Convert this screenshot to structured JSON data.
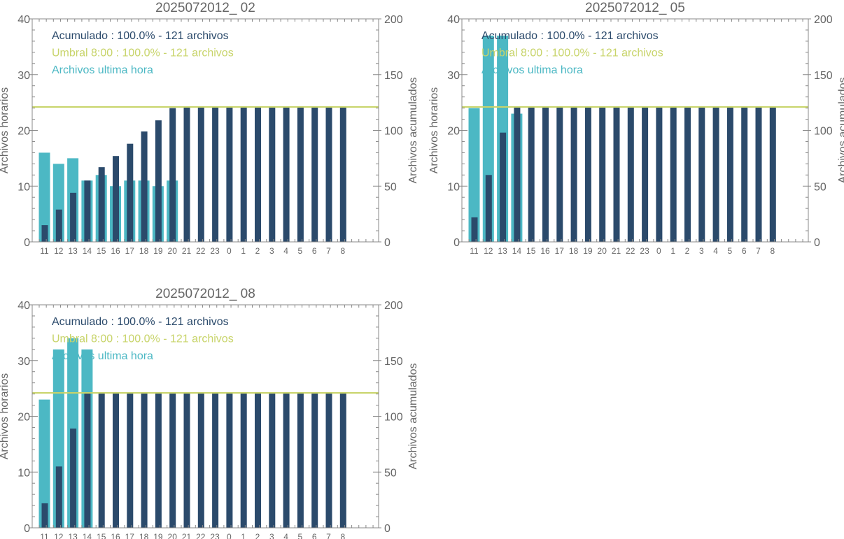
{
  "colors": {
    "hourly": "#4cb8c4",
    "cumulative": "#2b4a6b",
    "threshold": "#c8d46a",
    "axis": "#888888",
    "text": "#666666"
  },
  "chart_data": [
    {
      "type": "bar",
      "title": "2025072012_ 02",
      "ylabel_left": "Archivos horarios",
      "ylabel_right": "Archivos acumulados",
      "ylim_left": [
        0,
        40
      ],
      "ylim_right": [
        0,
        200
      ],
      "yticks_left": [
        "0",
        "10",
        "20",
        "30",
        "40"
      ],
      "yticks_right": [
        "0",
        "50",
        "100",
        "150",
        "200"
      ],
      "categories": [
        "11",
        "12",
        "13",
        "14",
        "15",
        "16",
        "17",
        "18",
        "19",
        "20",
        "21",
        "22",
        "23",
        "0",
        "1",
        "2",
        "3",
        "4",
        "5",
        "6",
        "7",
        "8"
      ],
      "legend": [
        "Acumulado : 100.0% - 121 archivos",
        "Umbral 8:00 : 100.0% - 121 archivos",
        "Archivos ultima hora"
      ],
      "threshold": 121,
      "series": [
        {
          "name": "Archivos ultima hora",
          "axis": "left",
          "values": [
            16,
            14,
            15,
            11,
            12,
            10,
            11,
            11,
            10,
            11,
            0,
            0,
            0,
            0,
            0,
            0,
            0,
            0,
            0,
            0,
            0,
            0
          ]
        },
        {
          "name": "Acumulado",
          "axis": "right",
          "values": [
            15,
            29,
            44,
            55,
            67,
            77,
            88,
            99,
            109,
            120,
            121,
            121,
            121,
            121,
            121,
            121,
            121,
            121,
            121,
            121,
            121,
            121
          ]
        }
      ]
    },
    {
      "type": "bar",
      "title": "2025072012_ 05",
      "ylabel_left": "Archivos horarios",
      "ylabel_right": "Archivos acumulados",
      "ylim_left": [
        0,
        40
      ],
      "ylim_right": [
        0,
        200
      ],
      "yticks_left": [
        "0",
        "10",
        "20",
        "30",
        "40"
      ],
      "yticks_right": [
        "0",
        "50",
        "100",
        "150",
        "200"
      ],
      "categories": [
        "11",
        "12",
        "13",
        "14",
        "15",
        "16",
        "17",
        "18",
        "19",
        "20",
        "21",
        "22",
        "23",
        "0",
        "1",
        "2",
        "3",
        "4",
        "5",
        "6",
        "7",
        "8"
      ],
      "legend": [
        "Acumulado : 100.0% - 121 archivos",
        "Umbral 8:00 : 100.0% - 121 archivos",
        "Archivos ultima hora"
      ],
      "threshold": 121,
      "series": [
        {
          "name": "Archivos ultima hora",
          "axis": "left",
          "values": [
            24,
            37,
            37,
            23,
            0,
            0,
            0,
            0,
            0,
            0,
            0,
            0,
            0,
            0,
            0,
            0,
            0,
            0,
            0,
            0,
            0,
            0
          ]
        },
        {
          "name": "Acumulado",
          "axis": "right",
          "values": [
            22,
            60,
            98,
            121,
            121,
            121,
            121,
            121,
            121,
            121,
            121,
            121,
            121,
            121,
            121,
            121,
            121,
            121,
            121,
            121,
            121,
            121
          ]
        }
      ]
    },
    {
      "type": "bar",
      "title": "2025072012_ 08",
      "ylabel_left": "Archivos horarios",
      "ylabel_right": "Archivos acumulados",
      "ylim_left": [
        0,
        40
      ],
      "ylim_right": [
        0,
        200
      ],
      "yticks_left": [
        "0",
        "10",
        "20",
        "30",
        "40"
      ],
      "yticks_right": [
        "0",
        "50",
        "100",
        "150",
        "200"
      ],
      "categories": [
        "11",
        "12",
        "13",
        "14",
        "15",
        "16",
        "17",
        "18",
        "19",
        "20",
        "21",
        "22",
        "23",
        "0",
        "1",
        "2",
        "3",
        "4",
        "5",
        "6",
        "7",
        "8"
      ],
      "legend": [
        "Acumulado : 100.0% - 121 archivos",
        "Umbral 8:00 : 100.0% - 121 archivos",
        "Archivos ultima hora"
      ],
      "threshold": 121,
      "series": [
        {
          "name": "Archivos ultima hora",
          "axis": "left",
          "values": [
            23,
            32,
            34,
            32,
            0,
            0,
            0,
            0,
            0,
            0,
            0,
            0,
            0,
            0,
            0,
            0,
            0,
            0,
            0,
            0,
            0,
            0
          ]
        },
        {
          "name": "Acumulado",
          "axis": "right",
          "values": [
            22,
            55,
            89,
            121,
            121,
            121,
            121,
            121,
            121,
            121,
            121,
            121,
            121,
            121,
            121,
            121,
            121,
            121,
            121,
            121,
            121,
            121
          ]
        }
      ]
    }
  ]
}
